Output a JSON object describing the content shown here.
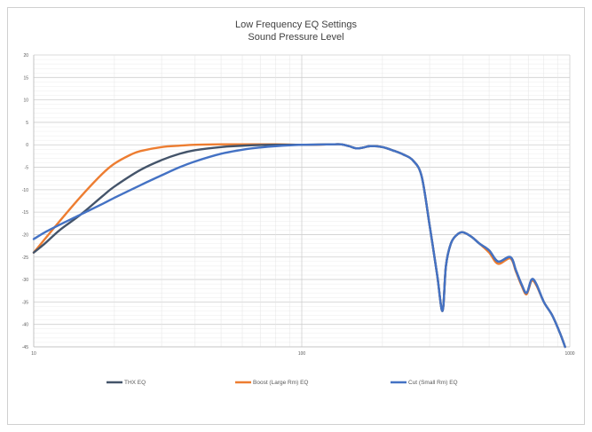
{
  "chart_data": {
    "type": "line",
    "title": "Low Frequency EQ Settings",
    "subtitle": "Sound Pressure Level",
    "x_scale": "log",
    "xlim": [
      10,
      1000
    ],
    "x_ticks": [
      "10",
      "100",
      "1000"
    ],
    "ylim": [
      -45,
      20
    ],
    "y_ticks": [
      "20",
      "15",
      "10",
      "5",
      "0",
      "-5",
      "-10",
      "-15",
      "-20",
      "-25",
      "-30",
      "-35",
      "-40",
      "-45"
    ],
    "grid": true,
    "legend_position": "bottom",
    "series": [
      {
        "name": "THX EQ",
        "color": "#44546a",
        "points": [
          [
            10,
            -24
          ],
          [
            11,
            -22
          ],
          [
            12.5,
            -19
          ],
          [
            15,
            -15.5
          ],
          [
            18,
            -11.5
          ],
          [
            20,
            -9.3
          ],
          [
            25,
            -5.6
          ],
          [
            30,
            -3.4
          ],
          [
            35,
            -2
          ],
          [
            40,
            -1.2
          ],
          [
            50,
            -0.5
          ],
          [
            60,
            -0.2
          ],
          [
            80,
            0
          ],
          [
            100,
            0
          ],
          [
            130,
            0.1
          ],
          [
            140,
            0.1
          ],
          [
            150,
            -0.3
          ],
          [
            160,
            -0.8
          ],
          [
            170,
            -0.6
          ],
          [
            180,
            -0.3
          ],
          [
            200,
            -0.5
          ],
          [
            220,
            -1.3
          ],
          [
            240,
            -2.2
          ],
          [
            260,
            -3.5
          ],
          [
            280,
            -7
          ],
          [
            300,
            -18
          ],
          [
            320,
            -29
          ],
          [
            335,
            -37
          ],
          [
            345,
            -27
          ],
          [
            360,
            -22
          ],
          [
            380,
            -20
          ],
          [
            400,
            -19.5
          ],
          [
            430,
            -20.5
          ],
          [
            460,
            -22
          ],
          [
            500,
            -23.5
          ],
          [
            540,
            -26
          ],
          [
            600,
            -25
          ],
          [
            630,
            -28
          ],
          [
            660,
            -31
          ],
          [
            690,
            -33
          ],
          [
            720,
            -30
          ],
          [
            750,
            -31
          ],
          [
            800,
            -35
          ],
          [
            860,
            -38
          ],
          [
            920,
            -42
          ],
          [
            960,
            -45
          ]
        ]
      },
      {
        "name": "Boost (Large Rm) EQ",
        "color": "#ed7d31",
        "points": [
          [
            10,
            -24
          ],
          [
            11,
            -21
          ],
          [
            12.5,
            -17
          ],
          [
            15,
            -11.5
          ],
          [
            18,
            -6.5
          ],
          [
            20,
            -4.2
          ],
          [
            23,
            -2.2
          ],
          [
            25,
            -1.4
          ],
          [
            30,
            -0.5
          ],
          [
            35,
            -0.2
          ],
          [
            40,
            0
          ],
          [
            50,
            0.1
          ],
          [
            60,
            0.1
          ],
          [
            80,
            0.1
          ],
          [
            100,
            0
          ],
          [
            130,
            0.1
          ],
          [
            140,
            0.1
          ],
          [
            150,
            -0.3
          ],
          [
            160,
            -0.8
          ],
          [
            170,
            -0.6
          ],
          [
            180,
            -0.3
          ],
          [
            200,
            -0.5
          ],
          [
            220,
            -1.3
          ],
          [
            240,
            -2.2
          ],
          [
            260,
            -3.5
          ],
          [
            280,
            -7
          ],
          [
            300,
            -18
          ],
          [
            320,
            -29
          ],
          [
            335,
            -37
          ],
          [
            345,
            -27
          ],
          [
            360,
            -22
          ],
          [
            380,
            -20
          ],
          [
            400,
            -19.5
          ],
          [
            430,
            -20.5
          ],
          [
            460,
            -22
          ],
          [
            500,
            -24
          ],
          [
            540,
            -26.5
          ],
          [
            600,
            -25.3
          ],
          [
            630,
            -28.3
          ],
          [
            660,
            -31.3
          ],
          [
            690,
            -33.3
          ],
          [
            720,
            -30.3
          ],
          [
            750,
            -31.3
          ],
          [
            800,
            -35
          ],
          [
            860,
            -38
          ],
          [
            920,
            -42
          ],
          [
            960,
            -45
          ]
        ]
      },
      {
        "name": "Cut (Small Rm) EQ",
        "color": "#4472c4",
        "points": [
          [
            10,
            -21
          ],
          [
            11,
            -19.5
          ],
          [
            12.5,
            -17.8
          ],
          [
            15,
            -15.5
          ],
          [
            18,
            -13.2
          ],
          [
            20,
            -11.8
          ],
          [
            25,
            -9
          ],
          [
            30,
            -6.8
          ],
          [
            35,
            -5
          ],
          [
            40,
            -3.7
          ],
          [
            50,
            -2
          ],
          [
            60,
            -1.1
          ],
          [
            70,
            -0.6
          ],
          [
            80,
            -0.3
          ],
          [
            100,
            0
          ],
          [
            130,
            0.1
          ],
          [
            140,
            0.1
          ],
          [
            150,
            -0.3
          ],
          [
            160,
            -0.8
          ],
          [
            170,
            -0.6
          ],
          [
            180,
            -0.3
          ],
          [
            200,
            -0.5
          ],
          [
            220,
            -1.3
          ],
          [
            240,
            -2.2
          ],
          [
            260,
            -3.5
          ],
          [
            280,
            -7
          ],
          [
            300,
            -18
          ],
          [
            320,
            -29
          ],
          [
            335,
            -37
          ],
          [
            345,
            -27
          ],
          [
            360,
            -22
          ],
          [
            380,
            -20
          ],
          [
            400,
            -19.5
          ],
          [
            430,
            -20.5
          ],
          [
            460,
            -22
          ],
          [
            500,
            -23.5
          ],
          [
            540,
            -26
          ],
          [
            600,
            -25
          ],
          [
            630,
            -28
          ],
          [
            660,
            -31
          ],
          [
            690,
            -33
          ],
          [
            720,
            -30
          ],
          [
            750,
            -31
          ],
          [
            800,
            -35
          ],
          [
            860,
            -38
          ],
          [
            920,
            -42
          ],
          [
            960,
            -45
          ]
        ]
      }
    ]
  }
}
